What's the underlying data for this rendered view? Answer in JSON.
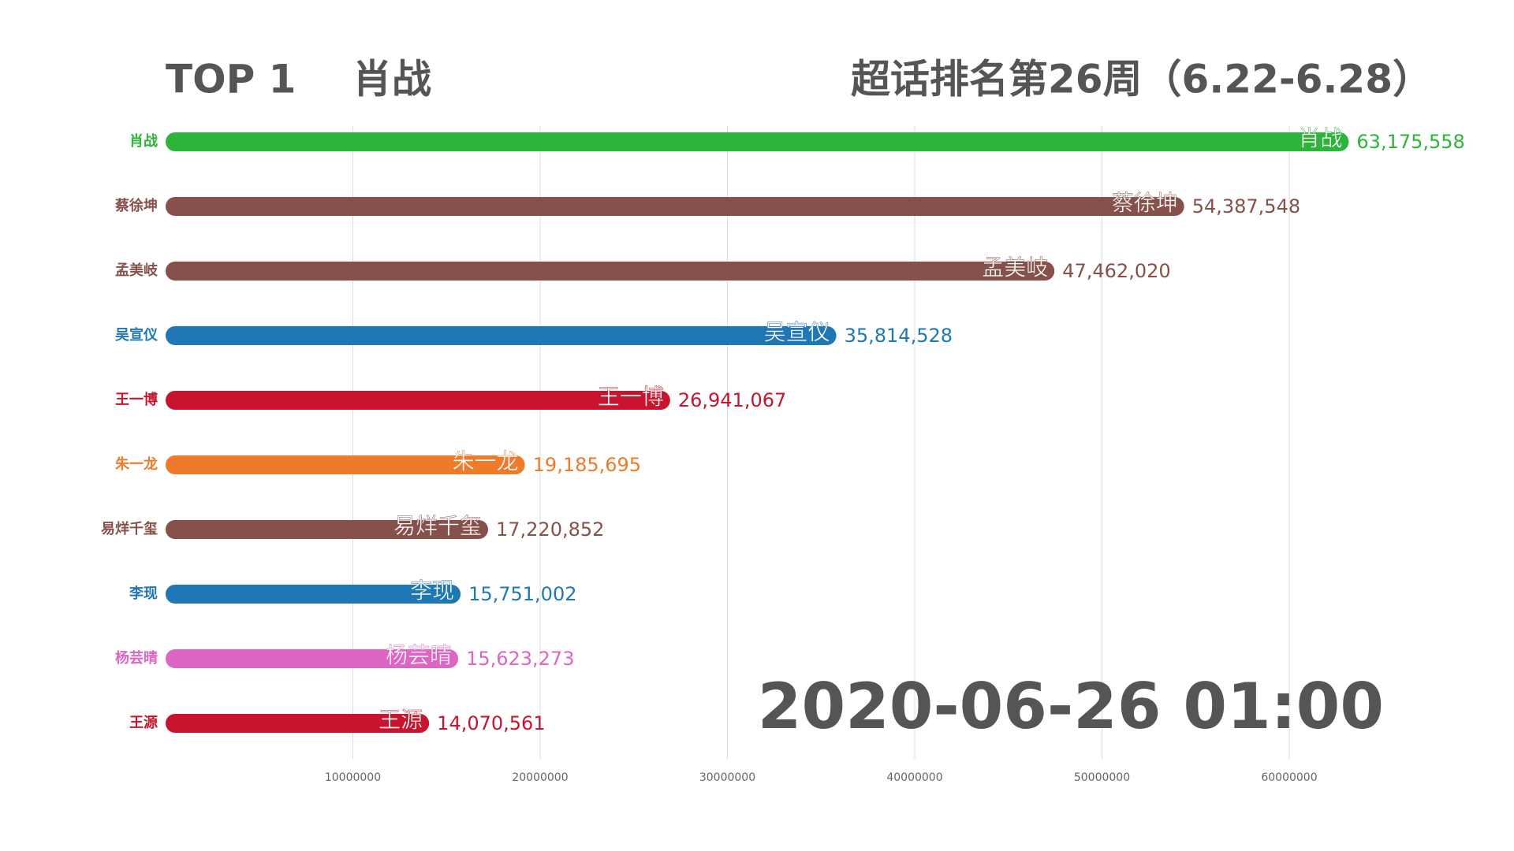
{
  "chart_data": {
    "type": "bar",
    "rank_label": "TOP 1",
    "leader": "肖战",
    "title": "超话排名第26周（6.22-6.28）",
    "timestamp": "2020-06-26 01:00",
    "categories": [
      "肖战",
      "蔡徐坤",
      "孟美岐",
      "吴宣仪",
      "王一博",
      "朱一龙",
      "易烊千玺",
      "李现",
      "杨芸晴",
      "王源"
    ],
    "values": [
      63175558,
      54387548,
      47462020,
      35814528,
      26941067,
      19185695,
      17220852,
      15751002,
      15623273,
      14070561
    ],
    "value_labels": [
      "63,175,558",
      "54,387,548",
      "47,462,020",
      "35,814,528",
      "26,941,067",
      "19,185,695",
      "17,220,852",
      "15,751,002",
      "15,623,273",
      "14,070,561"
    ],
    "colors": [
      "#2db43b",
      "#87514b",
      "#87514b",
      "#1f78b4",
      "#c8142e",
      "#ef7a2a",
      "#87514b",
      "#1f78b4",
      "#dc66c2",
      "#c8142e"
    ],
    "xlim": [
      0,
      68000000
    ],
    "xticks": [
      10000000,
      20000000,
      30000000,
      40000000,
      50000000,
      60000000
    ],
    "grid": true
  }
}
